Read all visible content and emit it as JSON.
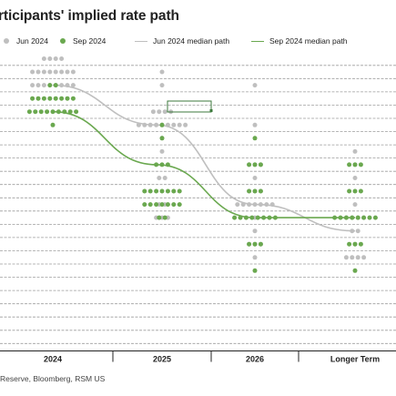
{
  "title": "rticipants' implied rate path",
  "legend": [
    {
      "label": "Jun 2024",
      "kind": "dot",
      "color": "#bfbfbf"
    },
    {
      "label": "Sep 2024",
      "kind": "dot",
      "color": "#6aa84f"
    },
    {
      "label": "Jun 2024 median path",
      "kind": "line",
      "color": "#bfbfbf"
    },
    {
      "label": "Sep 2024 median path",
      "kind": "line",
      "color": "#6aa84f"
    }
  ],
  "source": "Reserve, Bloomberg, RSM US",
  "colors": {
    "jun": "#bfbfbf",
    "sep": "#6aa84f",
    "grid": "#9e9e9e"
  },
  "chart_data": {
    "type": "scatter",
    "title": "rticipants' implied rate path",
    "categories": [
      "2024",
      "2025",
      "2026",
      "Longer Term"
    ],
    "grid": true,
    "y_levels": 22,
    "legend_position": "top",
    "series": [
      {
        "name": "Jun 2024",
        "color": "#bfbfbf",
        "counts": [
          {
            "0": 4,
            "1": 8,
            "2": 8
          },
          {
            "1": 1,
            "2": 1,
            "4": 4,
            "5": 9,
            "6": 1,
            "7": 1,
            "9": 2,
            "11": 2,
            "12": 3
          },
          {
            "2": 1,
            "5": 1,
            "8": 3,
            "9": 1,
            "10": 3,
            "11": 7,
            "12": 1,
            "13": 1,
            "14": 3,
            "15": 1
          },
          {
            "7": 1,
            "8": 1,
            "9": 1,
            "11": 1,
            "12": 4,
            "13": 2,
            "14": 1,
            "15": 4
          }
        ]
      },
      {
        "name": "Sep 2024",
        "color": "#6aa84f",
        "counts": [
          {
            "2": 2,
            "3": 8,
            "4": 9,
            "5": 1
          },
          {
            "5": 1,
            "6": 1,
            "8": 3,
            "10": 7,
            "11": 7,
            "12": 2
          },
          {
            "6": 1,
            "8": 3,
            "10": 3,
            "12": 8,
            "14": 3,
            "16": 1
          },
          {
            "8": 3,
            "10": 3,
            "12": 8,
            "14": 3,
            "16": 1
          }
        ]
      },
      {
        "name": "Jun 2024 median path",
        "color": "#bfbfbf",
        "kind": "line",
        "points": [
          [
            0,
            2
          ],
          [
            0.95,
            5
          ],
          [
            2,
            11
          ],
          [
            3,
            13
          ]
        ]
      },
      {
        "name": "Sep 2024 median path",
        "color": "#6aa84f",
        "kind": "line",
        "points": [
          [
            0,
            4
          ],
          [
            0.95,
            8
          ],
          [
            2,
            12
          ],
          [
            3,
            12
          ]
        ]
      }
    ]
  }
}
